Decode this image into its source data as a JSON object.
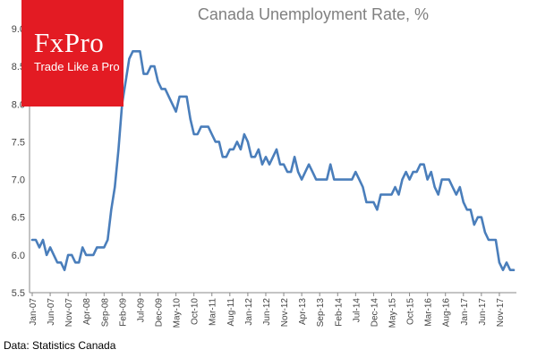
{
  "logo": {
    "wordmark": "FxPro",
    "tagline": "Trade Like a Pro",
    "bg_color": "#e31b23"
  },
  "source": "Data: Statistics Canada",
  "chart_data": {
    "type": "line",
    "title": "Canada  Unemployment Rate, %",
    "xlabel": "",
    "ylabel": "",
    "ylim": [
      5.5,
      9.0
    ],
    "yticks": [
      "5.5",
      "6.0",
      "6.5",
      "7.0",
      "7.5",
      "8.0",
      "8.5",
      "9.0"
    ],
    "grid": false,
    "x_start": "Jan-07",
    "x_tick_labels": [
      "Jan-07",
      "Jun-07",
      "Nov-07",
      "Apr-08",
      "Sep-08",
      "Feb-09",
      "Jul-09",
      "Dec-09",
      "May-10",
      "Oct-10",
      "Mar-11",
      "Aug-11",
      "Jan-12",
      "Jun-12",
      "Nov-12",
      "Apr-13",
      "Sep-13",
      "Feb-14",
      "Jul-14",
      "Dec-14",
      "May-15",
      "Oct-15",
      "Mar-16",
      "Aug-16",
      "Jan-17",
      "Jun-17",
      "Nov-17"
    ],
    "series": [
      {
        "color": "#4a7ebb",
        "values": [
          6.2,
          6.2,
          6.1,
          6.2,
          6.0,
          6.1,
          6.0,
          5.9,
          5.9,
          5.8,
          6.0,
          6.0,
          5.9,
          5.9,
          6.1,
          6.0,
          6.0,
          6.0,
          6.1,
          6.1,
          6.1,
          6.2,
          6.6,
          6.9,
          7.4,
          8.0,
          8.3,
          8.6,
          8.7,
          8.7,
          8.7,
          8.4,
          8.4,
          8.5,
          8.5,
          8.3,
          8.2,
          8.2,
          8.1,
          8.0,
          7.9,
          8.1,
          8.1,
          8.1,
          7.8,
          7.6,
          7.6,
          7.7,
          7.7,
          7.7,
          7.6,
          7.5,
          7.5,
          7.3,
          7.3,
          7.4,
          7.4,
          7.5,
          7.4,
          7.6,
          7.5,
          7.3,
          7.3,
          7.4,
          7.2,
          7.3,
          7.2,
          7.3,
          7.4,
          7.2,
          7.2,
          7.1,
          7.1,
          7.3,
          7.1,
          7.0,
          7.1,
          7.2,
          7.1,
          7.0,
          7.0,
          7.0,
          7.0,
          7.2,
          7.0,
          7.0,
          7.0,
          7.0,
          7.0,
          7.0,
          7.1,
          7.0,
          6.9,
          6.7,
          6.7,
          6.7,
          6.6,
          6.8,
          6.8,
          6.8,
          6.8,
          6.9,
          6.8,
          7.0,
          7.1,
          7.0,
          7.1,
          7.1,
          7.2,
          7.2,
          7.0,
          7.1,
          6.9,
          6.8,
          7.0,
          7.0,
          7.0,
          6.9,
          6.8,
          6.9,
          6.7,
          6.6,
          6.6,
          6.4,
          6.5,
          6.5,
          6.3,
          6.2,
          6.2,
          6.2,
          5.9,
          5.8,
          5.9,
          5.8,
          5.8
        ]
      }
    ]
  }
}
